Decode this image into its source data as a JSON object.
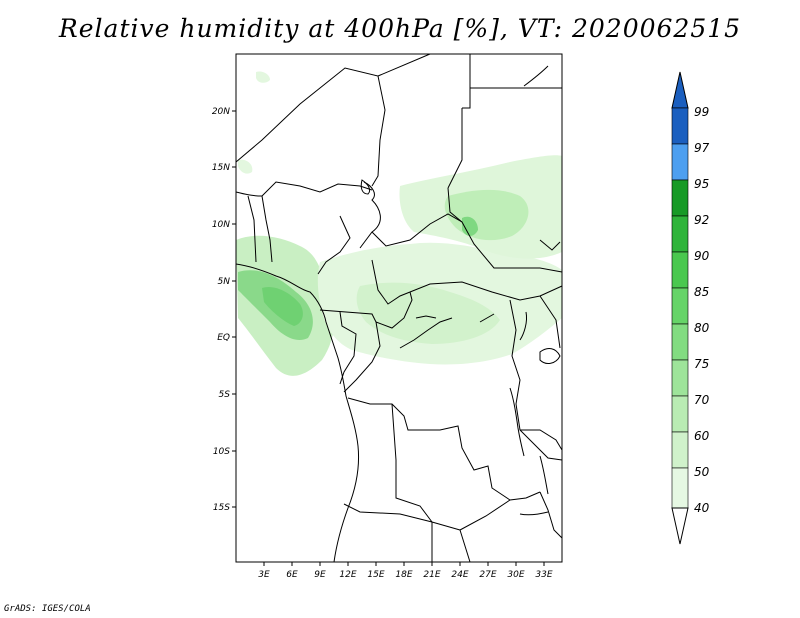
{
  "title": "Relative humidity at 400hPa [%], VT: 2020062515",
  "credit": "GrADS: IGES/COLA",
  "map": {
    "lat_labels": [
      "20N",
      "15N",
      "10N",
      "5N",
      "EQ",
      "5S",
      "10S",
      "15S"
    ],
    "lon_labels": [
      "3E",
      "6E",
      "9E",
      "12E",
      "15E",
      "18E",
      "21E",
      "24E",
      "27E",
      "30E",
      "33E"
    ]
  },
  "colorbar": {
    "levels": [
      "40",
      "50",
      "60",
      "70",
      "75",
      "80",
      "85",
      "90",
      "92",
      "95",
      "97",
      "99"
    ],
    "colors": [
      "#e6f8e3",
      "#d0f2cb",
      "#b9ecb3",
      "#9ee49a",
      "#82dc81",
      "#66d468",
      "#4ac84f",
      "#2fb43a",
      "#179a26",
      "#4d9ff0",
      "#2b7fde",
      "#1b5fbf"
    ]
  }
}
